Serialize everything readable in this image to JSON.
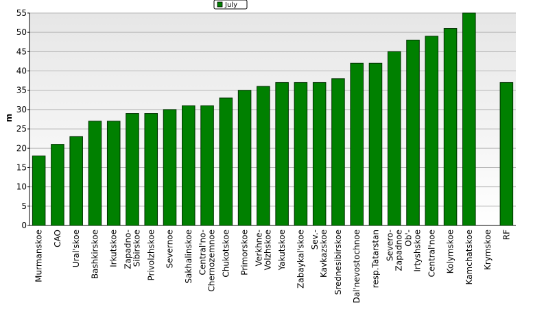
{
  "chart_data": {
    "type": "bar",
    "y_label": "m",
    "legend_position": "top",
    "grid": true,
    "categories": [
      "Murmanskoe",
      "CAO",
      "Ural'skoe",
      "Bashkirskoe",
      "Irkutskoe",
      "Zapadno-\nSibirskoe",
      "Privolzhskoe",
      "Severnoe",
      "Sakhalinskoe",
      "Central'no-\nChernozemnoe",
      "Chukotskoe",
      "Primorskoe",
      "Verkhne-\nVolzhskoe",
      "Yakutskoe",
      "Zabaykal'skoe",
      "Sev.-\nKavkazskoe",
      "Srednesibirskoe",
      "Dal'nevostochnoe",
      "resp.Tatarstan",
      "Severo-\nZapadnoe",
      "Ob'-\nIrtyshskoe",
      "Central'noe",
      "Kolymskoe",
      "Kamchatskoe",
      "Krymskoe",
      "RF"
    ],
    "series": [
      {
        "name": "July",
        "color": "#008000",
        "values": [
          18,
          21,
          23,
          27,
          27,
          29,
          29,
          30,
          31,
          31,
          33,
          35,
          36,
          37,
          37,
          37,
          38,
          42,
          42,
          45,
          48,
          49,
          51,
          55,
          null,
          37
        ]
      }
    ],
    "ylim": [
      0,
      55
    ],
    "yticks": [
      0,
      5,
      10,
      15,
      20,
      25,
      30,
      35,
      40,
      45,
      50,
      55
    ]
  }
}
